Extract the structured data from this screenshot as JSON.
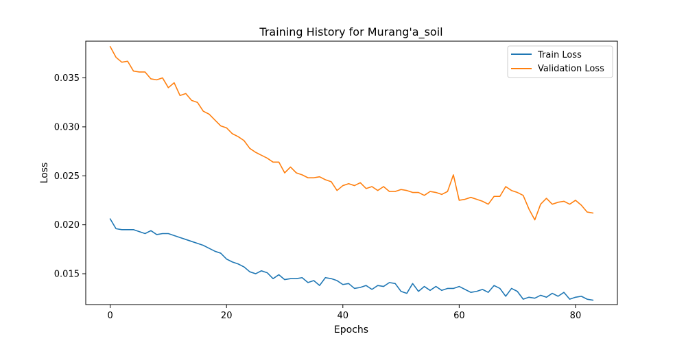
{
  "chart_data": {
    "type": "line",
    "title": "Training History for Murang'a_soil",
    "xlabel": "Epochs",
    "ylabel": "Loss",
    "xlim": [
      -4.2,
      87.2
    ],
    "ylim": [
      0.01185,
      0.03875
    ],
    "xticks": [
      0,
      20,
      40,
      60,
      80
    ],
    "xtick_labels": [
      "0",
      "20",
      "40",
      "60",
      "80"
    ],
    "yticks": [
      0.015,
      0.02,
      0.025,
      0.03,
      0.035
    ],
    "ytick_labels": [
      "0.015",
      "0.020",
      "0.025",
      "0.030",
      "0.035"
    ],
    "grid": false,
    "legend_position": "top-right",
    "series": [
      {
        "name": "Train Loss",
        "color": "#1f77b4",
        "values": [
          0.0206,
          0.0196,
          0.0195,
          0.0195,
          0.0195,
          0.0193,
          0.0191,
          0.0194,
          0.019,
          0.0191,
          0.0191,
          0.0189,
          0.0187,
          0.0185,
          0.0183,
          0.0181,
          0.0179,
          0.0176,
          0.0173,
          0.0171,
          0.0165,
          0.0162,
          0.016,
          0.0157,
          0.0152,
          0.015,
          0.0153,
          0.0151,
          0.0145,
          0.0149,
          0.0144,
          0.0145,
          0.0145,
          0.0146,
          0.0141,
          0.0143,
          0.0138,
          0.0146,
          0.0145,
          0.0143,
          0.0139,
          0.014,
          0.0135,
          0.0136,
          0.0138,
          0.0134,
          0.0138,
          0.0137,
          0.0141,
          0.014,
          0.0132,
          0.013,
          0.014,
          0.0132,
          0.0137,
          0.0133,
          0.0137,
          0.0133,
          0.0135,
          0.0135,
          0.0137,
          0.0134,
          0.0131,
          0.0132,
          0.0134,
          0.0131,
          0.0138,
          0.0135,
          0.0127,
          0.0135,
          0.0132,
          0.0124,
          0.0126,
          0.0125,
          0.0128,
          0.0126,
          0.013,
          0.0127,
          0.0131,
          0.0124,
          0.0126,
          0.0127,
          0.0124,
          0.0123
        ]
      },
      {
        "name": "Validation Loss",
        "color": "#ff7f0e",
        "values": [
          0.0382,
          0.0371,
          0.0366,
          0.0367,
          0.0357,
          0.0356,
          0.0356,
          0.0349,
          0.0348,
          0.035,
          0.034,
          0.0345,
          0.0332,
          0.0334,
          0.0327,
          0.0325,
          0.0316,
          0.0313,
          0.0307,
          0.0301,
          0.0299,
          0.0293,
          0.029,
          0.0286,
          0.0278,
          0.0274,
          0.0271,
          0.0268,
          0.0264,
          0.0264,
          0.0253,
          0.0259,
          0.0253,
          0.0251,
          0.0248,
          0.0248,
          0.0249,
          0.0246,
          0.0244,
          0.0235,
          0.024,
          0.0242,
          0.024,
          0.0243,
          0.0237,
          0.0239,
          0.0235,
          0.0239,
          0.0234,
          0.0234,
          0.0236,
          0.0235,
          0.0233,
          0.0233,
          0.023,
          0.0234,
          0.0233,
          0.0231,
          0.0234,
          0.0251,
          0.0225,
          0.0226,
          0.0228,
          0.0226,
          0.0224,
          0.0221,
          0.0229,
          0.0229,
          0.0239,
          0.0235,
          0.0233,
          0.023,
          0.0216,
          0.0205,
          0.0221,
          0.0227,
          0.0221,
          0.0223,
          0.0224,
          0.0221,
          0.0225,
          0.022,
          0.0213,
          0.0212
        ]
      }
    ]
  }
}
